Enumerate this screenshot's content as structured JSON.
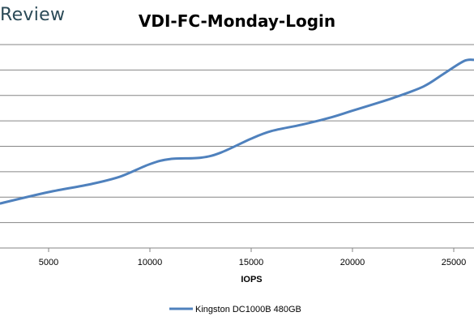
{
  "header": {
    "brand": "Review"
  },
  "chart_data": {
    "type": "line",
    "title": "VDI-FC-Monday-Login",
    "xlabel": "IOPS",
    "ylabel": "",
    "x_ticks": [
      5000,
      10000,
      15000,
      20000,
      25000
    ],
    "xlim": [
      2600,
      26000
    ],
    "ylim": [
      0,
      8
    ],
    "grid": "horizontal",
    "legend_position": "bottom",
    "series": [
      {
        "name": "Kingston DC1000B 480GB",
        "color": "#4f81bd",
        "points": [
          [
            2600,
            1.75
          ],
          [
            5000,
            2.2
          ],
          [
            7000,
            2.5
          ],
          [
            8500,
            2.8
          ],
          [
            10000,
            3.3
          ],
          [
            11000,
            3.5
          ],
          [
            12500,
            3.55
          ],
          [
            13500,
            3.75
          ],
          [
            15000,
            4.3
          ],
          [
            16000,
            4.6
          ],
          [
            17500,
            4.85
          ],
          [
            19000,
            5.15
          ],
          [
            20000,
            5.4
          ],
          [
            22000,
            5.9
          ],
          [
            23500,
            6.35
          ],
          [
            24500,
            6.85
          ],
          [
            25500,
            7.35
          ],
          [
            26000,
            7.4
          ]
        ]
      }
    ]
  }
}
